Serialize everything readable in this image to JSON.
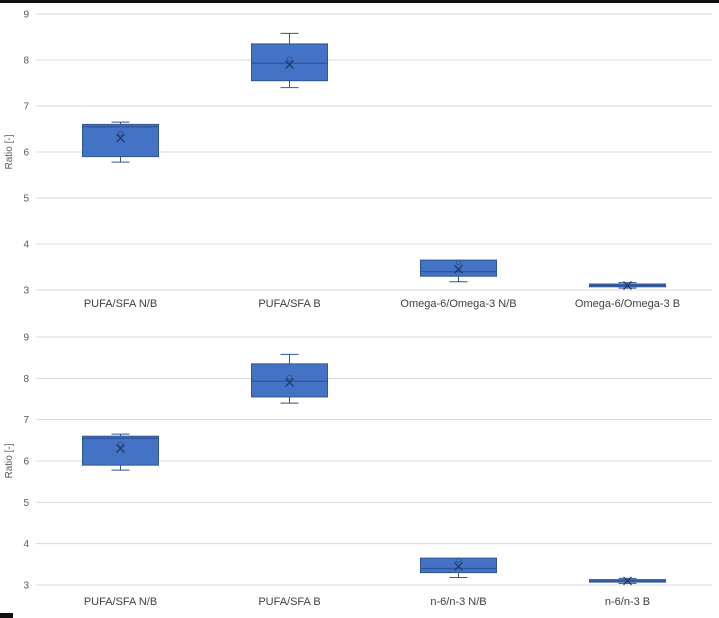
{
  "page": {
    "top_border_color": "#111111",
    "corner_mark_color": "#111111",
    "background": "#FFFFFF"
  },
  "chart_data": [
    {
      "type": "box",
      "title": "",
      "ylabel": "Ratio [-]",
      "ylim": [
        3,
        9
      ],
      "yticks": [
        3,
        4,
        5,
        6,
        7,
        8,
        9
      ],
      "grid": true,
      "legend": false,
      "categories": [
        "PUFA/SFA N/B",
        "PUFA/SFA B",
        "Omega-6/Omega-3 N/B",
        "Omega-6/Omega-3 B"
      ],
      "boxes": [
        {
          "whisker_low": 5.78,
          "q1": 5.9,
          "median": 6.55,
          "q3": 6.6,
          "whisker_high": 6.65,
          "mean": 6.3,
          "points": [
            6.4
          ]
        },
        {
          "whisker_low": 7.4,
          "q1": 7.55,
          "median": 7.93,
          "q3": 8.35,
          "whisker_high": 8.58,
          "mean": 7.9,
          "points": [
            8.02
          ]
        },
        {
          "whisker_low": 3.18,
          "q1": 3.3,
          "median": 3.4,
          "q3": 3.65,
          "whisker_high": 3.65,
          "mean": 3.45,
          "points": [
            3.6
          ]
        },
        {
          "whisker_low": 3.04,
          "q1": 3.07,
          "median": 3.1,
          "q3": 3.13,
          "whisker_high": 3.16,
          "mean": 3.1,
          "points": []
        }
      ],
      "colors": {
        "fill": "#4472C4",
        "border": "#2F5597",
        "median": "#2F5597",
        "mean": "#1F3864",
        "point": "#2F5597",
        "grid": "#D9D9D9"
      }
    },
    {
      "type": "box",
      "title": "",
      "ylabel": "Ratio [-]",
      "ylim": [
        3,
        9
      ],
      "yticks": [
        3,
        4,
        5,
        6,
        7,
        8,
        9
      ],
      "grid": true,
      "legend": false,
      "categories": [
        "PUFA/SFA N/B",
        "PUFA/SFA B",
        "n-6/n-3 N/B",
        "n-6/n-3 B"
      ],
      "boxes": [
        {
          "whisker_low": 5.78,
          "q1": 5.9,
          "median": 6.55,
          "q3": 6.6,
          "whisker_high": 6.65,
          "mean": 6.3,
          "points": [
            6.4
          ]
        },
        {
          "whisker_low": 7.4,
          "q1": 7.55,
          "median": 7.93,
          "q3": 8.35,
          "whisker_high": 8.58,
          "mean": 7.9,
          "points": [
            8.02
          ]
        },
        {
          "whisker_low": 3.18,
          "q1": 3.3,
          "median": 3.4,
          "q3": 3.65,
          "whisker_high": 3.65,
          "mean": 3.45,
          "points": [
            3.6
          ]
        },
        {
          "whisker_low": 3.04,
          "q1": 3.07,
          "median": 3.1,
          "q3": 3.13,
          "whisker_high": 3.16,
          "mean": 3.1,
          "points": []
        }
      ],
      "colors": {
        "fill": "#4472C4",
        "border": "#2F5597",
        "median": "#2F5597",
        "mean": "#1F3864",
        "point": "#2F5597",
        "grid": "#D9D9D9"
      }
    }
  ]
}
